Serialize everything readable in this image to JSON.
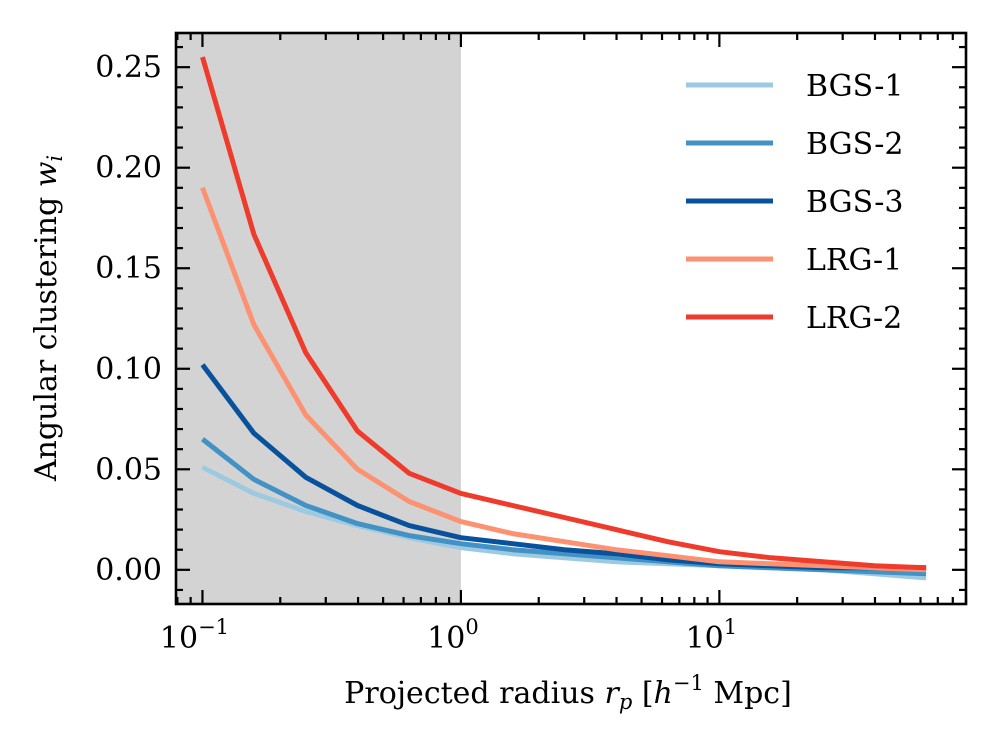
{
  "chart_data": {
    "type": "line",
    "xlabel": "Projected radius",
    "xlabel_symbol": "r",
    "xlabel_symbol_sub": "p",
    "xlabel_unit_open": "[",
    "xlabel_unit_h": "h",
    "xlabel_unit_exp": "−1",
    "xlabel_unit_name": "Mpc",
    "xlabel_unit_close": "]",
    "ylabel": "Angular clustering",
    "ylabel_symbol": "w",
    "ylabel_symbol_sub": "i",
    "xscale": "log",
    "xlim": [
      0.079,
      90
    ],
    "ylim": [
      -0.017,
      0.267
    ],
    "yticks": [
      0.0,
      0.05,
      0.1,
      0.15,
      0.2,
      0.25
    ],
    "ytick_labels": [
      "0.00",
      "0.05",
      "0.10",
      "0.15",
      "0.20",
      "0.25"
    ],
    "xticks": [
      0.1,
      1,
      10
    ],
    "xtick_base": "10",
    "xtick_exponents": [
      "−1",
      "0",
      "1"
    ],
    "shaded_region": {
      "x": [
        0.079,
        1.0
      ],
      "color": "#d3d3d3"
    },
    "grid": false,
    "legend_placement": "top-right",
    "x": [
      0.1,
      0.158,
      0.251,
      0.398,
      0.631,
      1.0,
      1.585,
      2.512,
      3.981,
      6.31,
      10.0,
      15.85,
      25.12,
      39.81,
      63.1
    ],
    "series": [
      {
        "name": "BGS-1",
        "color": "#9ecae1",
        "values": [
          0.051,
          0.038,
          0.029,
          0.022,
          0.016,
          0.011,
          0.008,
          0.006,
          0.004,
          0.003,
          0.002,
          0.001,
          0.0,
          -0.002,
          -0.004
        ]
      },
      {
        "name": "BGS-2",
        "color": "#4292c6",
        "values": [
          0.065,
          0.045,
          0.032,
          0.023,
          0.017,
          0.013,
          0.01,
          0.008,
          0.006,
          0.004,
          0.002,
          0.001,
          0.0,
          -0.001,
          -0.002
        ]
      },
      {
        "name": "BGS-3",
        "color": "#08519c",
        "values": [
          0.102,
          0.068,
          0.046,
          0.032,
          0.022,
          0.016,
          0.013,
          0.01,
          0.008,
          0.005,
          0.003,
          0.002,
          0.001,
          0.001,
          0.001
        ]
      },
      {
        "name": "LRG-1",
        "color": "#fc9272",
        "values": [
          0.19,
          0.122,
          0.077,
          0.05,
          0.034,
          0.024,
          0.018,
          0.014,
          0.01,
          0.007,
          0.004,
          0.003,
          0.002,
          0.001,
          0.0
        ]
      },
      {
        "name": "LRG-2",
        "color": "#ef3b2c",
        "values": [
          0.255,
          0.167,
          0.108,
          0.069,
          0.048,
          0.038,
          0.032,
          0.026,
          0.02,
          0.014,
          0.009,
          0.006,
          0.004,
          0.002,
          0.001
        ]
      }
    ]
  }
}
